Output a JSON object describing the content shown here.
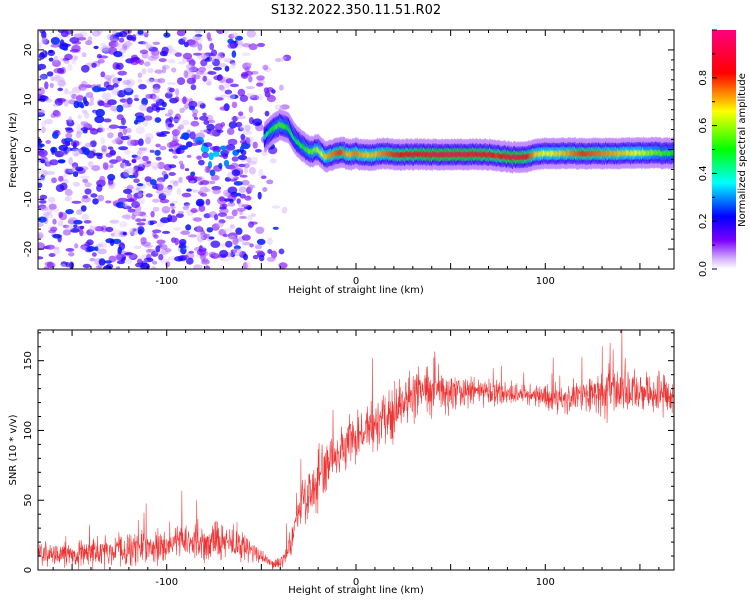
{
  "figure": {
    "title": "S132.2022.350.11.51.R02"
  },
  "chart_data": [
    {
      "type": "heatmap",
      "title": "",
      "xlabel": "Height of straight line (km)",
      "ylabel": "Frequency (Hz)",
      "xlim": [
        -168,
        168
      ],
      "ylim": [
        -24,
        24
      ],
      "xticks": [
        -100,
        0,
        100
      ],
      "yticks": [
        -20,
        -10,
        0,
        10,
        20
      ],
      "colorbar": {
        "label": "Normalized spectral amplitude",
        "range": [
          0,
          1
        ],
        "ticks": [
          0.0,
          0.2,
          0.4,
          0.6,
          0.8
        ],
        "colors": [
          "#ffffff",
          "#7a00ff",
          "#0000ff",
          "#00ffff",
          "#00ff00",
          "#ffff00",
          "#ff0000",
          "#ff0080"
        ]
      },
      "ridge": {
        "x": [
          -48,
          -44,
          -40,
          -36,
          -32,
          -28,
          -24,
          -20,
          -16,
          -12,
          -8,
          -4,
          0,
          5,
          10,
          15,
          20,
          30,
          40,
          50,
          60,
          70,
          75,
          80,
          85,
          90,
          95,
          100,
          110,
          120,
          130,
          140,
          150,
          160,
          168
        ],
        "y": [
          2.5,
          4,
          5,
          4.5,
          2,
          0.5,
          -0.5,
          0,
          -1.5,
          -1,
          -0.5,
          -1,
          -0.8,
          -1.2,
          -1,
          -0.8,
          -1,
          -1,
          -1,
          -1,
          -1,
          -1,
          -1.3,
          -1.5,
          -1.6,
          -1.5,
          -1,
          -0.8,
          -0.8,
          -0.8,
          -0.8,
          -0.8,
          -0.7,
          -0.7,
          -0.7
        ],
        "amplitude": [
          0.4,
          0.5,
          0.55,
          0.5,
          0.45,
          0.5,
          0.55,
          0.6,
          0.7,
          0.75,
          0.8,
          0.7,
          0.75,
          0.7,
          0.7,
          0.75,
          0.8,
          0.85,
          0.9,
          0.92,
          0.9,
          0.85,
          0.8,
          0.9,
          0.92,
          0.85,
          0.7,
          0.65,
          0.7,
          0.8,
          0.75,
          0.7,
          0.65,
          0.55,
          0.5
        ]
      },
      "noise_region": {
        "x_range": [
          -168,
          -50
        ],
        "description": "scattered low-amplitude blobs"
      }
    },
    {
      "type": "line",
      "title": "",
      "xlabel": "Height of straight line (km)",
      "ylabel": "SNR (10 * v/v)",
      "xlim": [
        -168,
        168
      ],
      "ylim": [
        0,
        172
      ],
      "xticks": [
        -100,
        0,
        100
      ],
      "yticks": [
        0,
        50,
        100,
        150
      ],
      "color": "#ee3333",
      "series": [
        {
          "name": "",
          "x": [
            -168,
            -150,
            -130,
            -110,
            -90,
            -70,
            -60,
            -50,
            -45,
            -40,
            -35,
            -30,
            -25,
            -20,
            -15,
            -10,
            -5,
            0,
            5,
            10,
            15,
            20,
            25,
            30,
            40,
            50,
            60,
            70,
            80,
            90,
            100,
            110,
            120,
            130,
            140,
            150,
            160,
            168
          ],
          "y": [
            10,
            12,
            14,
            17,
            20,
            20,
            18,
            10,
            5,
            5,
            15,
            45,
            55,
            65,
            72,
            80,
            90,
            95,
            100,
            105,
            110,
            115,
            120,
            125,
            130,
            130,
            128,
            128,
            126,
            125,
            124,
            123,
            125,
            128,
            128,
            128,
            126,
            125
          ],
          "spread": [
            10,
            12,
            14,
            16,
            18,
            18,
            14,
            8,
            5,
            5,
            15,
            25,
            25,
            25,
            25,
            20,
            22,
            22,
            22,
            25,
            28,
            30,
            28,
            25,
            22,
            20,
            15,
            12,
            10,
            10,
            12,
            15,
            18,
            20,
            22,
            22,
            20,
            15
          ]
        }
      ]
    }
  ]
}
